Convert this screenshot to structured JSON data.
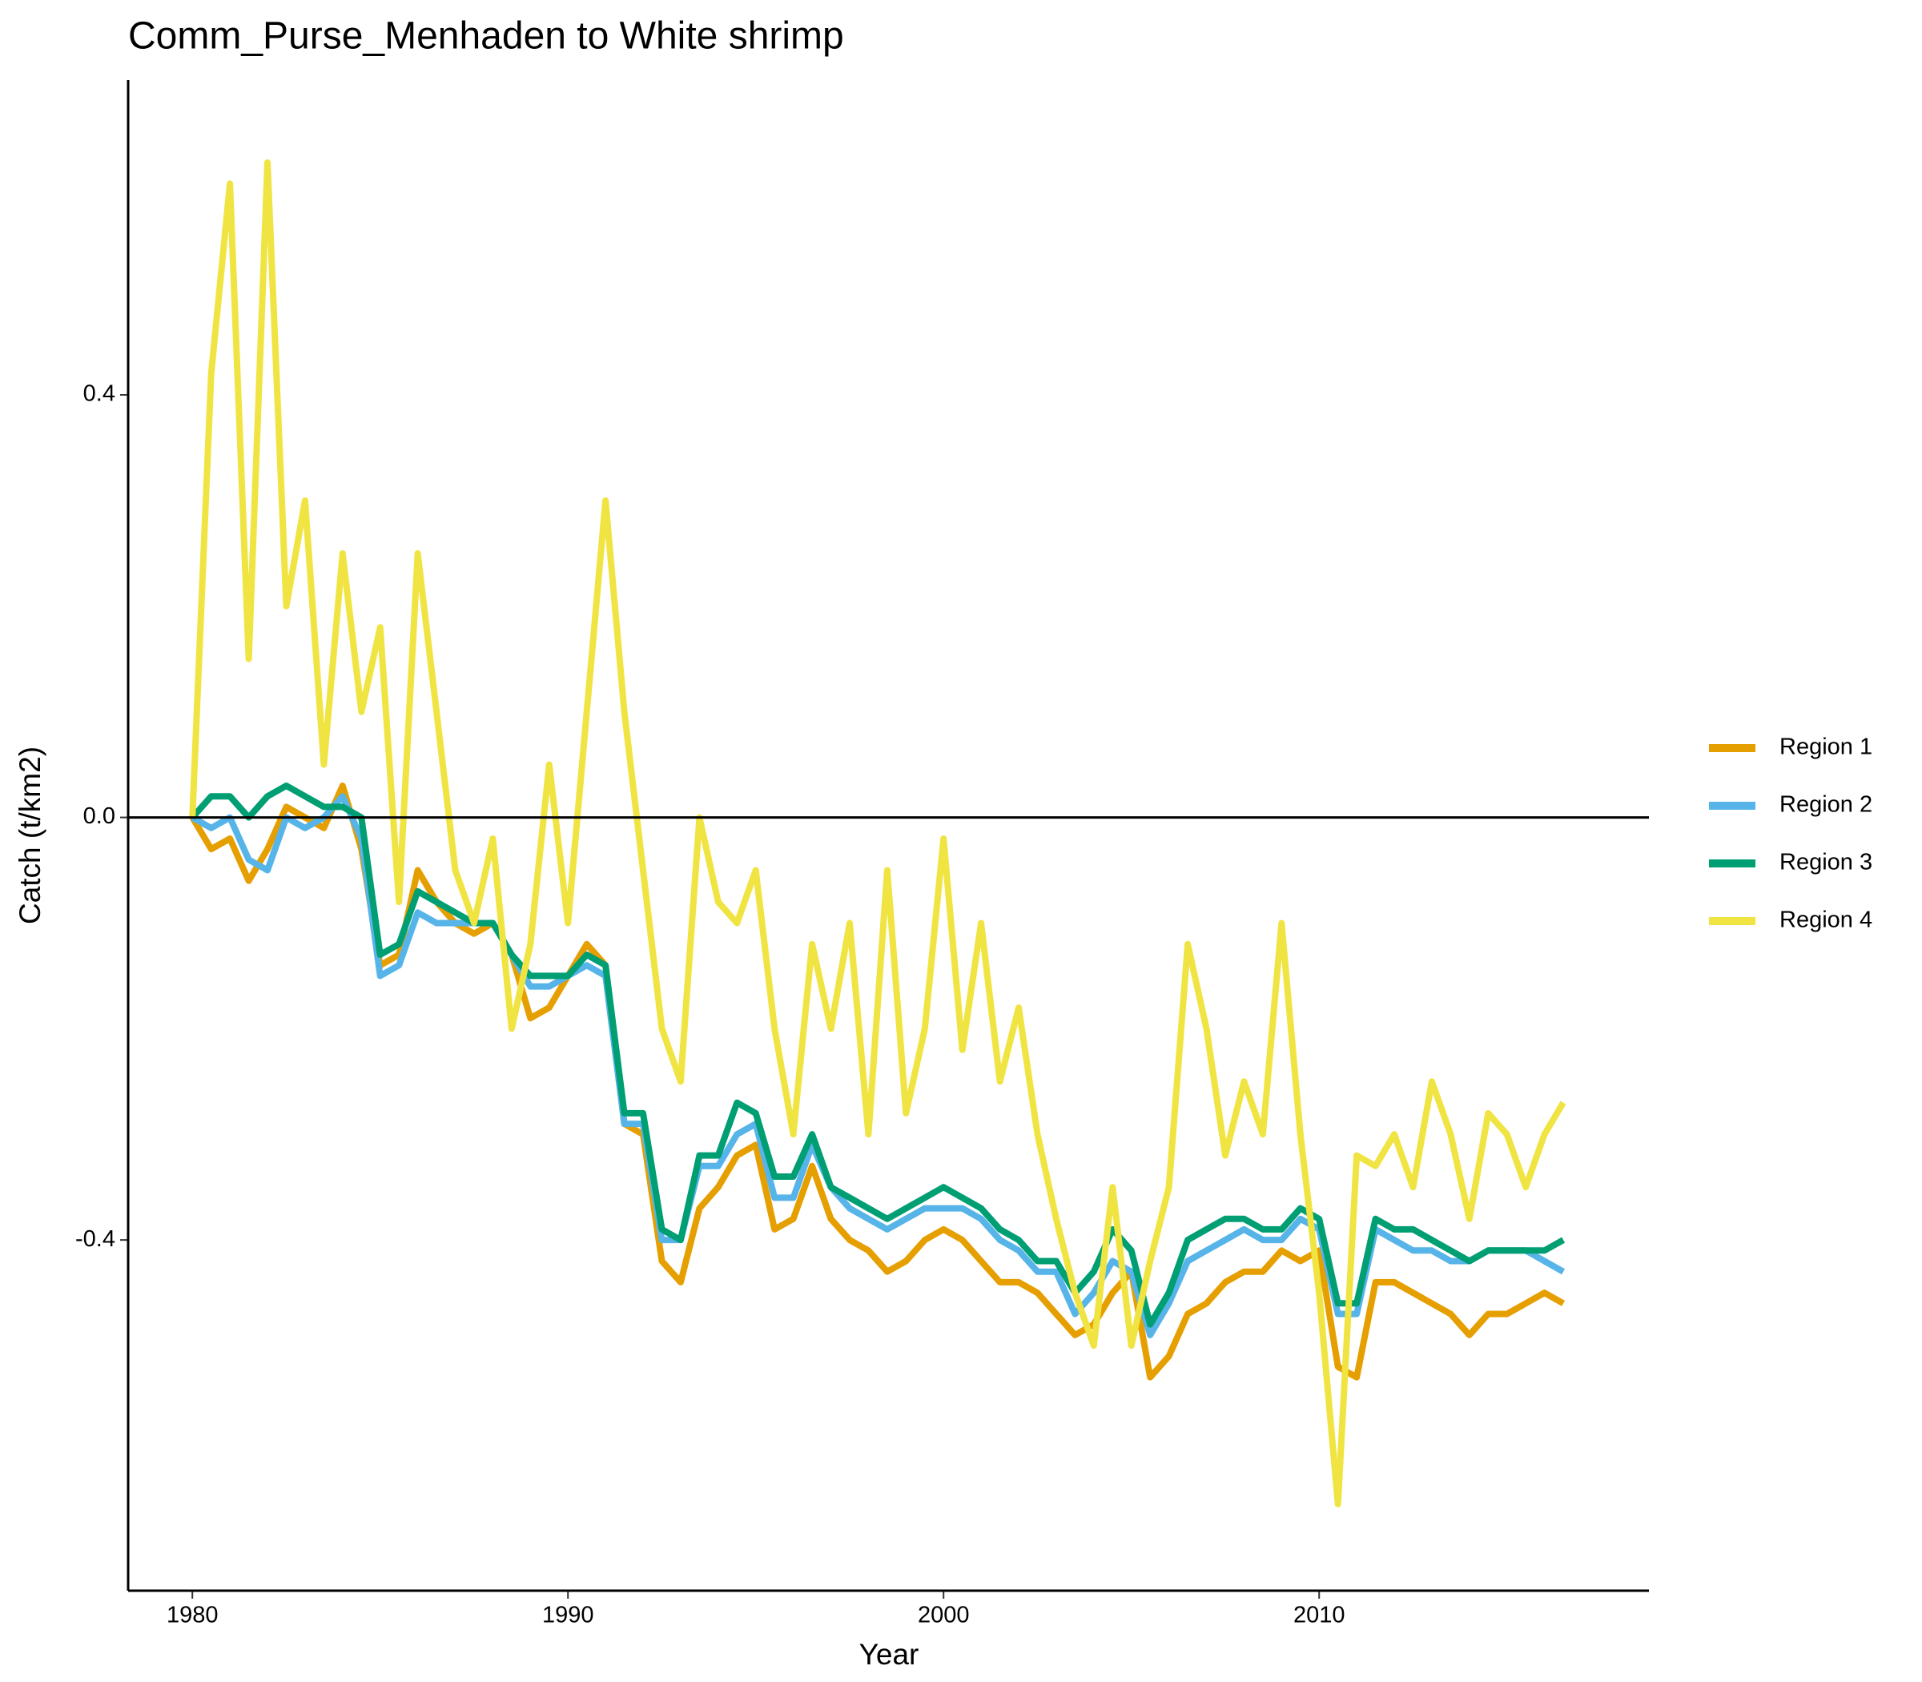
{
  "chart_data": {
    "type": "line",
    "title": "Comm_Purse_Menhaden to White shrimp",
    "x_label": "Year",
    "y_label": "Catch (t/km2)",
    "xlim": [
      1978.29,
      2018.78
    ],
    "ylim": [
      -0.732,
      0.698
    ],
    "xticks": [
      1980,
      1990,
      2000,
      2010
    ],
    "yticks": [
      {
        "value": -0.4,
        "label": "-0.4"
      },
      {
        "value": 0.0,
        "label": "0.0"
      },
      {
        "value": 0.4,
        "label": "0.4"
      }
    ],
    "hline": 0,
    "grid": false,
    "legend": "right",
    "x": [
      1980.0,
      1980.5,
      1981.0,
      1981.5,
      1982.0,
      1982.5,
      1983.0,
      1983.5,
      1984.0,
      1984.5,
      1985.0,
      1985.5,
      1986.0,
      1986.5,
      1987.0,
      1987.5,
      1988.0,
      1988.5,
      1989.0,
      1989.5,
      1990.0,
      1990.5,
      1991.0,
      1991.5,
      1992.0,
      1992.5,
      1993.0,
      1993.5,
      1994.0,
      1994.5,
      1995.0,
      1995.5,
      1996.0,
      1996.5,
      1997.0,
      1997.5,
      1998.0,
      1998.5,
      1999.0,
      1999.5,
      2000.0,
      2000.5,
      2001.0,
      2001.5,
      2002.0,
      2002.5,
      2003.0,
      2003.5,
      2004.0,
      2004.5,
      2005.0,
      2005.5,
      2006.0,
      2006.5,
      2007.0,
      2007.5,
      2008.0,
      2008.5,
      2009.0,
      2009.5,
      2010.0,
      2010.5,
      2011.0,
      2011.5,
      2012.0,
      2012.5,
      2013.0,
      2013.5,
      2014.0,
      2014.5,
      2015.0,
      2015.5,
      2016.0,
      2016.5
    ],
    "series": [
      {
        "name": "Region 1",
        "color": "#E69F00",
        "values": [
          0.0,
          -0.03,
          -0.02,
          -0.06,
          -0.03,
          0.01,
          0.0,
          -0.01,
          0.03,
          -0.03,
          -0.14,
          -0.13,
          -0.05,
          -0.08,
          -0.1,
          -0.11,
          -0.1,
          -0.13,
          -0.19,
          -0.18,
          -0.15,
          -0.12,
          -0.14,
          -0.29,
          -0.3,
          -0.42,
          -0.44,
          -0.37,
          -0.35,
          -0.32,
          -0.31,
          -0.39,
          -0.38,
          -0.33,
          -0.38,
          -0.4,
          -0.41,
          -0.43,
          -0.42,
          -0.4,
          -0.39,
          -0.4,
          -0.42,
          -0.44,
          -0.44,
          -0.45,
          -0.47,
          -0.49,
          -0.48,
          -0.45,
          -0.43,
          -0.53,
          -0.51,
          -0.47,
          -0.46,
          -0.44,
          -0.43,
          -0.43,
          -0.41,
          -0.42,
          -0.41,
          -0.52,
          -0.53,
          -0.44,
          -0.44,
          -0.45,
          -0.46,
          -0.47,
          -0.49,
          -0.47,
          -0.47,
          -0.46,
          -0.45,
          -0.46
        ]
      },
      {
        "name": "Region 2",
        "color": "#56B4E9",
        "values": [
          0.0,
          -0.01,
          0.0,
          -0.04,
          -0.05,
          0.0,
          -0.01,
          0.0,
          0.02,
          -0.02,
          -0.15,
          -0.14,
          -0.09,
          -0.1,
          -0.1,
          -0.1,
          -0.1,
          -0.13,
          -0.16,
          -0.16,
          -0.15,
          -0.14,
          -0.15,
          -0.29,
          -0.29,
          -0.4,
          -0.4,
          -0.33,
          -0.33,
          -0.3,
          -0.29,
          -0.36,
          -0.36,
          -0.31,
          -0.35,
          -0.37,
          -0.38,
          -0.39,
          -0.38,
          -0.37,
          -0.37,
          -0.37,
          -0.38,
          -0.4,
          -0.41,
          -0.43,
          -0.43,
          -0.47,
          -0.45,
          -0.42,
          -0.43,
          -0.49,
          -0.46,
          -0.42,
          -0.41,
          -0.4,
          -0.39,
          -0.4,
          -0.4,
          -0.38,
          -0.39,
          -0.47,
          -0.47,
          -0.39,
          -0.4,
          -0.41,
          -0.41,
          -0.42,
          -0.42,
          -0.41,
          -0.41,
          -0.41,
          -0.42,
          -0.43
        ]
      },
      {
        "name": "Region 3",
        "color": "#009E73",
        "values": [
          0.0,
          0.02,
          0.02,
          0.0,
          0.02,
          0.03,
          0.02,
          0.01,
          0.01,
          0.0,
          -0.13,
          -0.12,
          -0.07,
          -0.08,
          -0.09,
          -0.1,
          -0.1,
          -0.13,
          -0.15,
          -0.15,
          -0.15,
          -0.13,
          -0.14,
          -0.28,
          -0.28,
          -0.39,
          -0.4,
          -0.32,
          -0.32,
          -0.27,
          -0.28,
          -0.34,
          -0.34,
          -0.3,
          -0.35,
          -0.36,
          -0.37,
          -0.38,
          -0.37,
          -0.36,
          -0.35,
          -0.36,
          -0.37,
          -0.39,
          -0.4,
          -0.42,
          -0.42,
          -0.45,
          -0.43,
          -0.39,
          -0.41,
          -0.48,
          -0.45,
          -0.4,
          -0.39,
          -0.38,
          -0.38,
          -0.39,
          -0.39,
          -0.37,
          -0.38,
          -0.46,
          -0.46,
          -0.38,
          -0.39,
          -0.39,
          -0.4,
          -0.41,
          -0.42,
          -0.41,
          -0.41,
          -0.41,
          -0.41,
          -0.4
        ]
      },
      {
        "name": "Region 4",
        "color": "#F0E442",
        "values": [
          0.0,
          0.42,
          0.6,
          0.15,
          0.62,
          0.2,
          0.3,
          0.05,
          0.25,
          0.1,
          0.18,
          -0.08,
          0.25,
          0.1,
          -0.05,
          -0.1,
          -0.02,
          -0.2,
          -0.12,
          0.05,
          -0.1,
          0.1,
          0.3,
          0.1,
          -0.05,
          -0.2,
          -0.25,
          0.0,
          -0.08,
          -0.1,
          -0.05,
          -0.2,
          -0.3,
          -0.12,
          -0.2,
          -0.1,
          -0.3,
          -0.05,
          -0.28,
          -0.2,
          -0.02,
          -0.22,
          -0.1,
          -0.25,
          -0.18,
          -0.3,
          -0.38,
          -0.45,
          -0.5,
          -0.35,
          -0.5,
          -0.42,
          -0.35,
          -0.12,
          -0.2,
          -0.32,
          -0.25,
          -0.3,
          -0.1,
          -0.3,
          -0.45,
          -0.65,
          -0.32,
          -0.33,
          -0.3,
          -0.35,
          -0.25,
          -0.3,
          -0.38,
          -0.28,
          -0.3,
          -0.35,
          -0.3,
          -0.27
        ]
      }
    ]
  }
}
